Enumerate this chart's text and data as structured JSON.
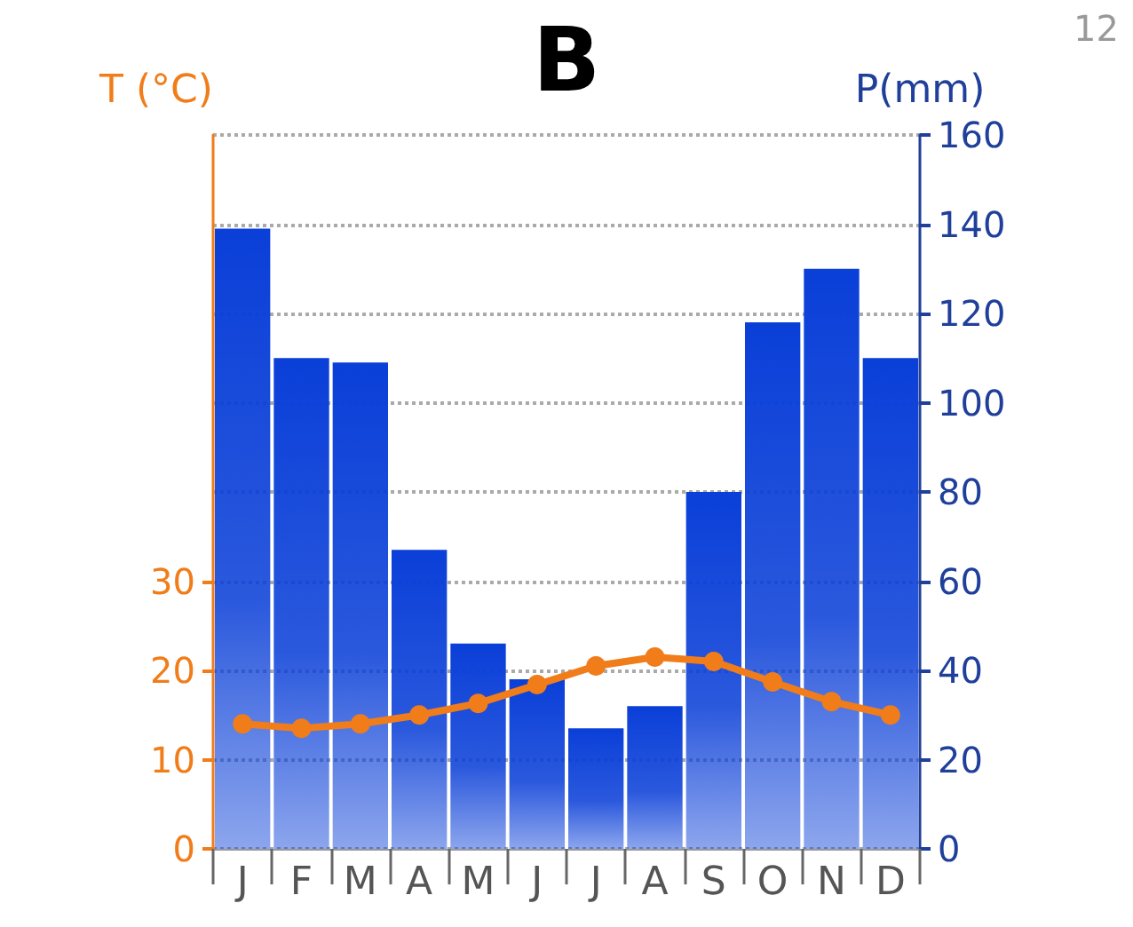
{
  "chart_data": {
    "type": "bar",
    "title": "B",
    "ylabel": "T (°C)",
    "y2label": "P(mm)",
    "categories": [
      "J",
      "F",
      "M",
      "A",
      "M",
      "J",
      "J",
      "A",
      "S",
      "O",
      "N",
      "D"
    ],
    "series": [
      {
        "axis": "y2",
        "color": "#0a3fd8",
        "values": [
          139,
          110,
          109,
          67,
          46,
          38,
          27,
          32,
          80,
          118,
          130,
          110
        ]
      },
      {
        "type": "line",
        "axis": "y",
        "color": "#f07d1a",
        "marker": "circle",
        "values": [
          14,
          13.5,
          14,
          15,
          16.3,
          18.4,
          20.5,
          21.5,
          21,
          18.7,
          16.5,
          15
        ]
      }
    ],
    "ylim": [
      0,
      80
    ],
    "yticks": [
      0,
      10,
      20,
      30
    ],
    "y2lim": [
      0,
      160
    ],
    "y2ticks": [
      0,
      20,
      40,
      60,
      80,
      100,
      120,
      140,
      160
    ],
    "grid": "y2",
    "annotations": [
      "12"
    ]
  }
}
